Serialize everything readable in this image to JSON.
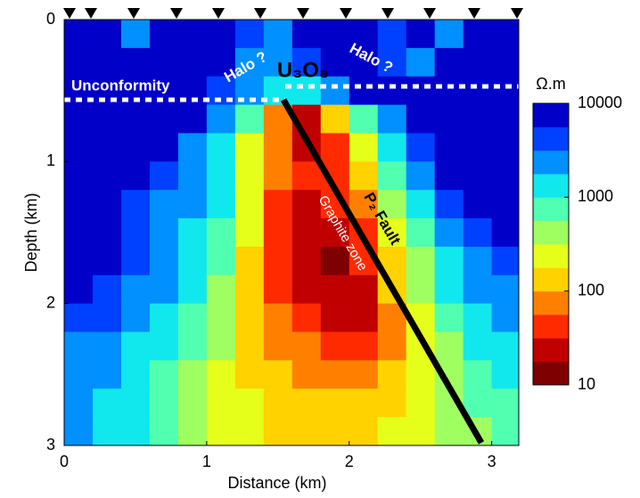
{
  "chart_data": {
    "type": "heatmap",
    "xlabel": "Distance (km)",
    "ylabel": "Depth (km)",
    "x": [
      0.1,
      0.3,
      0.5,
      0.7,
      0.9,
      1.1,
      1.3,
      1.5,
      1.7,
      1.9,
      2.1,
      2.3,
      2.5,
      2.7,
      2.9,
      3.1
    ],
    "y": [
      0.1,
      0.3,
      0.5,
      0.7,
      0.9,
      1.1,
      1.3,
      1.5,
      1.7,
      1.9,
      2.1,
      2.3,
      2.5,
      2.7,
      2.9
    ],
    "values": [
      [
        8000,
        7000,
        3000,
        6000,
        8000,
        8000,
        5000,
        3000,
        8000,
        8000,
        6000,
        4000,
        6000,
        3000,
        6000,
        8000
      ],
      [
        8000,
        8000,
        6000,
        8000,
        8000,
        6000,
        3000,
        2000,
        4000,
        6000,
        8000,
        5000,
        3000,
        6000,
        8000,
        8000
      ],
      [
        8000,
        8000,
        8000,
        8000,
        8000,
        5000,
        3000,
        1000,
        1000,
        3000,
        6000,
        8000,
        8000,
        8000,
        8000,
        8000
      ],
      [
        8000,
        8000,
        8000,
        8000,
        6000,
        3000,
        600,
        60,
        20,
        100,
        600,
        3000,
        6000,
        8000,
        8000,
        8000
      ],
      [
        8000,
        8000,
        8000,
        6000,
        3000,
        1500,
        300,
        60,
        30,
        50,
        300,
        1500,
        5000,
        8000,
        8000,
        8000
      ],
      [
        8000,
        8000,
        6000,
        4000,
        2500,
        1200,
        300,
        60,
        35,
        40,
        150,
        800,
        3000,
        6000,
        8000,
        8000
      ],
      [
        8000,
        6000,
        5000,
        3000,
        2000,
        1000,
        250,
        50,
        30,
        35,
        80,
        400,
        1500,
        4000,
        6000,
        8000
      ],
      [
        8000,
        6000,
        4000,
        3000,
        1500,
        800,
        200,
        40,
        25,
        25,
        50,
        200,
        800,
        2500,
        5000,
        6000
      ],
      [
        8000,
        6000,
        4000,
        2500,
        1200,
        600,
        150,
        35,
        20,
        15,
        35,
        150,
        500,
        1500,
        3000,
        5000
      ],
      [
        6000,
        5000,
        3000,
        2000,
        1000,
        500,
        150,
        40,
        25,
        20,
        30,
        100,
        400,
        1000,
        2000,
        3000
      ],
      [
        5000,
        4000,
        2500,
        1500,
        800,
        400,
        150,
        60,
        40,
        30,
        30,
        80,
        300,
        700,
        1500,
        2000
      ],
      [
        3000,
        2500,
        1500,
        1000,
        600,
        350,
        150,
        80,
        60,
        50,
        50,
        80,
        250,
        500,
        1000,
        1500
      ],
      [
        2500,
        2000,
        1200,
        800,
        500,
        300,
        150,
        100,
        80,
        70,
        80,
        100,
        200,
        400,
        700,
        1000
      ],
      [
        2000,
        1500,
        1000,
        700,
        450,
        300,
        180,
        120,
        100,
        100,
        100,
        150,
        200,
        350,
        600,
        800
      ],
      [
        2000,
        1500,
        1000,
        700,
        450,
        300,
        200,
        150,
        120,
        120,
        130,
        180,
        250,
        350,
        500,
        700
      ]
    ],
    "xlim": [
      0,
      3.19
    ],
    "ylim": [
      0,
      3
    ],
    "xticks": [
      0,
      1,
      2,
      3
    ],
    "yticks": [
      0,
      1,
      2,
      3
    ],
    "colorbar": {
      "label": "Ω.m",
      "lim": [
        10,
        10000
      ],
      "ticks": [
        10,
        100,
        1000,
        10000
      ],
      "log": true,
      "colors": [
        "#7f0000",
        "#c00000",
        "#ff2a00",
        "#ff8000",
        "#ffd200",
        "#e6ff1a",
        "#a0ff60",
        "#50ffb0",
        "#10e8ee",
        "#0090ff",
        "#0040ff",
        "#0000c8"
      ]
    },
    "annotations": [
      "Unconformity",
      "Halo ?",
      "Halo ?",
      "U₃O₈",
      "P₂ Fault",
      "Graphite zone"
    ]
  }
}
